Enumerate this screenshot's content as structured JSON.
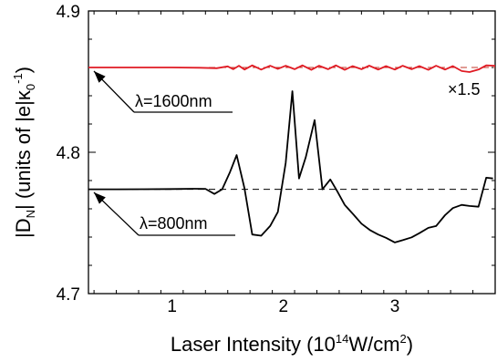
{
  "chart_data": {
    "type": "line",
    "xlabel": {
      "main": "Laser Intensity (10",
      "sup1": "14",
      "mid": "W/cm",
      "sup2": "2",
      "end": ")"
    },
    "ylabel": {
      "main": "|D",
      "sub1": "N",
      "mid": "| (units of |e|κ",
      "sub2": "0",
      "sup": "-1",
      "end": ")"
    },
    "xlim": [
      0.25,
      3.9
    ],
    "ylim": [
      4.7,
      4.9
    ],
    "x_ticks": [
      1,
      2,
      3
    ],
    "x_tick_labels": [
      "1",
      "2",
      "3"
    ],
    "y_ticks": [
      4.7,
      4.8,
      4.9
    ],
    "y_tick_labels": [
      "4.7",
      "4.8",
      "4.9"
    ],
    "grid": false,
    "series": [
      {
        "name": "λ=1600nm",
        "color": "#e01b24",
        "x": [
          0.25,
          0.5,
          0.75,
          1.0,
          1.25,
          1.4,
          1.5,
          1.55,
          1.6,
          1.65,
          1.72,
          1.8,
          1.88,
          1.95,
          2.02,
          2.1,
          2.17,
          2.25,
          2.32,
          2.4,
          2.47,
          2.55,
          2.62,
          2.7,
          2.77,
          2.85,
          2.92,
          3.0,
          3.07,
          3.15,
          3.22,
          3.3,
          3.37,
          3.45,
          3.52,
          3.6,
          3.67,
          3.75,
          3.82,
          3.9
        ],
        "values": [
          4.86,
          4.86,
          4.86,
          4.86,
          4.8598,
          4.8595,
          4.8608,
          4.8588,
          4.8612,
          4.8585,
          4.8615,
          4.8585,
          4.8612,
          4.859,
          4.8612,
          4.8588,
          4.8615,
          4.8583,
          4.8612,
          4.8588,
          4.8615,
          4.8583,
          4.861,
          4.8588,
          4.8613,
          4.8585,
          4.861,
          4.8585,
          4.8612,
          4.8588,
          4.861,
          4.8583,
          4.8612,
          4.8585,
          4.861,
          4.8575,
          4.8568,
          4.8585,
          4.8615,
          4.8612
        ],
        "reference_level": 4.86,
        "annotation": "×1.5"
      },
      {
        "name": "λ=800nm",
        "color": "#000000",
        "x": [
          0.25,
          0.5,
          0.75,
          1.0,
          1.2,
          1.3,
          1.38,
          1.45,
          1.52,
          1.58,
          1.65,
          1.72,
          1.8,
          1.88,
          1.95,
          2.02,
          2.08,
          2.14,
          2.2,
          2.28,
          2.35,
          2.42,
          2.48,
          2.55,
          2.63,
          2.7,
          2.78,
          2.85,
          2.92,
          3.0,
          3.07,
          3.15,
          3.22,
          3.3,
          3.37,
          3.45,
          3.52,
          3.6,
          3.67,
          3.75,
          3.82,
          3.88
        ],
        "values": [
          4.7738,
          4.7738,
          4.7739,
          4.774,
          4.7742,
          4.7741,
          4.7705,
          4.7738,
          4.786,
          4.798,
          4.7745,
          4.7418,
          4.741,
          4.7478,
          4.7578,
          4.7925,
          4.8432,
          4.7815,
          4.7965,
          4.8228,
          4.7738,
          4.7808,
          4.7728,
          4.7628,
          4.7558,
          4.7495,
          4.7448,
          4.7418,
          4.7395,
          4.7362,
          4.7378,
          4.7398,
          4.7428,
          4.7465,
          4.7478,
          4.7555,
          4.7605,
          4.7628,
          4.762,
          4.7615,
          4.782,
          4.7815
        ],
        "reference_level": 4.7738
      }
    ]
  }
}
